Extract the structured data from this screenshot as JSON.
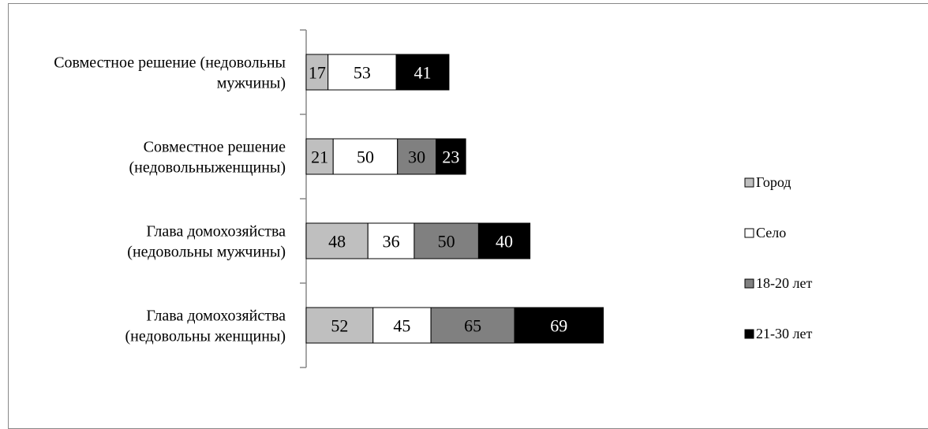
{
  "chart_data": {
    "type": "bar",
    "orientation": "horizontal",
    "stacked": true,
    "title": "",
    "xlabel": "",
    "ylabel": "",
    "grid": false,
    "legend_position": "right",
    "categories": [
      [
        "Совместное решение (недовольны",
        "мужчины)"
      ],
      [
        "Совместное решение",
        "(недовольныженщины)"
      ],
      [
        "Глава домохозяйства",
        "(недовольны мужчины)"
      ],
      [
        "Глава домохозяйства",
        "(недовольны женщины)"
      ]
    ],
    "series": [
      {
        "name": "Город",
        "color": "#bfbfbf",
        "label_color": "#000000",
        "values": [
          17,
          21,
          48,
          52
        ]
      },
      {
        "name": "Село",
        "color": "#ffffff",
        "label_color": "#000000",
        "values": [
          53,
          50,
          36,
          45
        ]
      },
      {
        "name": "18-20 лет",
        "color": "#808080",
        "label_color": "#000000",
        "values": [
          null,
          30,
          50,
          65
        ]
      },
      {
        "name": "21-30 лет",
        "color": "#000000",
        "label_color": "#ffffff",
        "values": [
          41,
          23,
          40,
          69
        ]
      }
    ]
  }
}
